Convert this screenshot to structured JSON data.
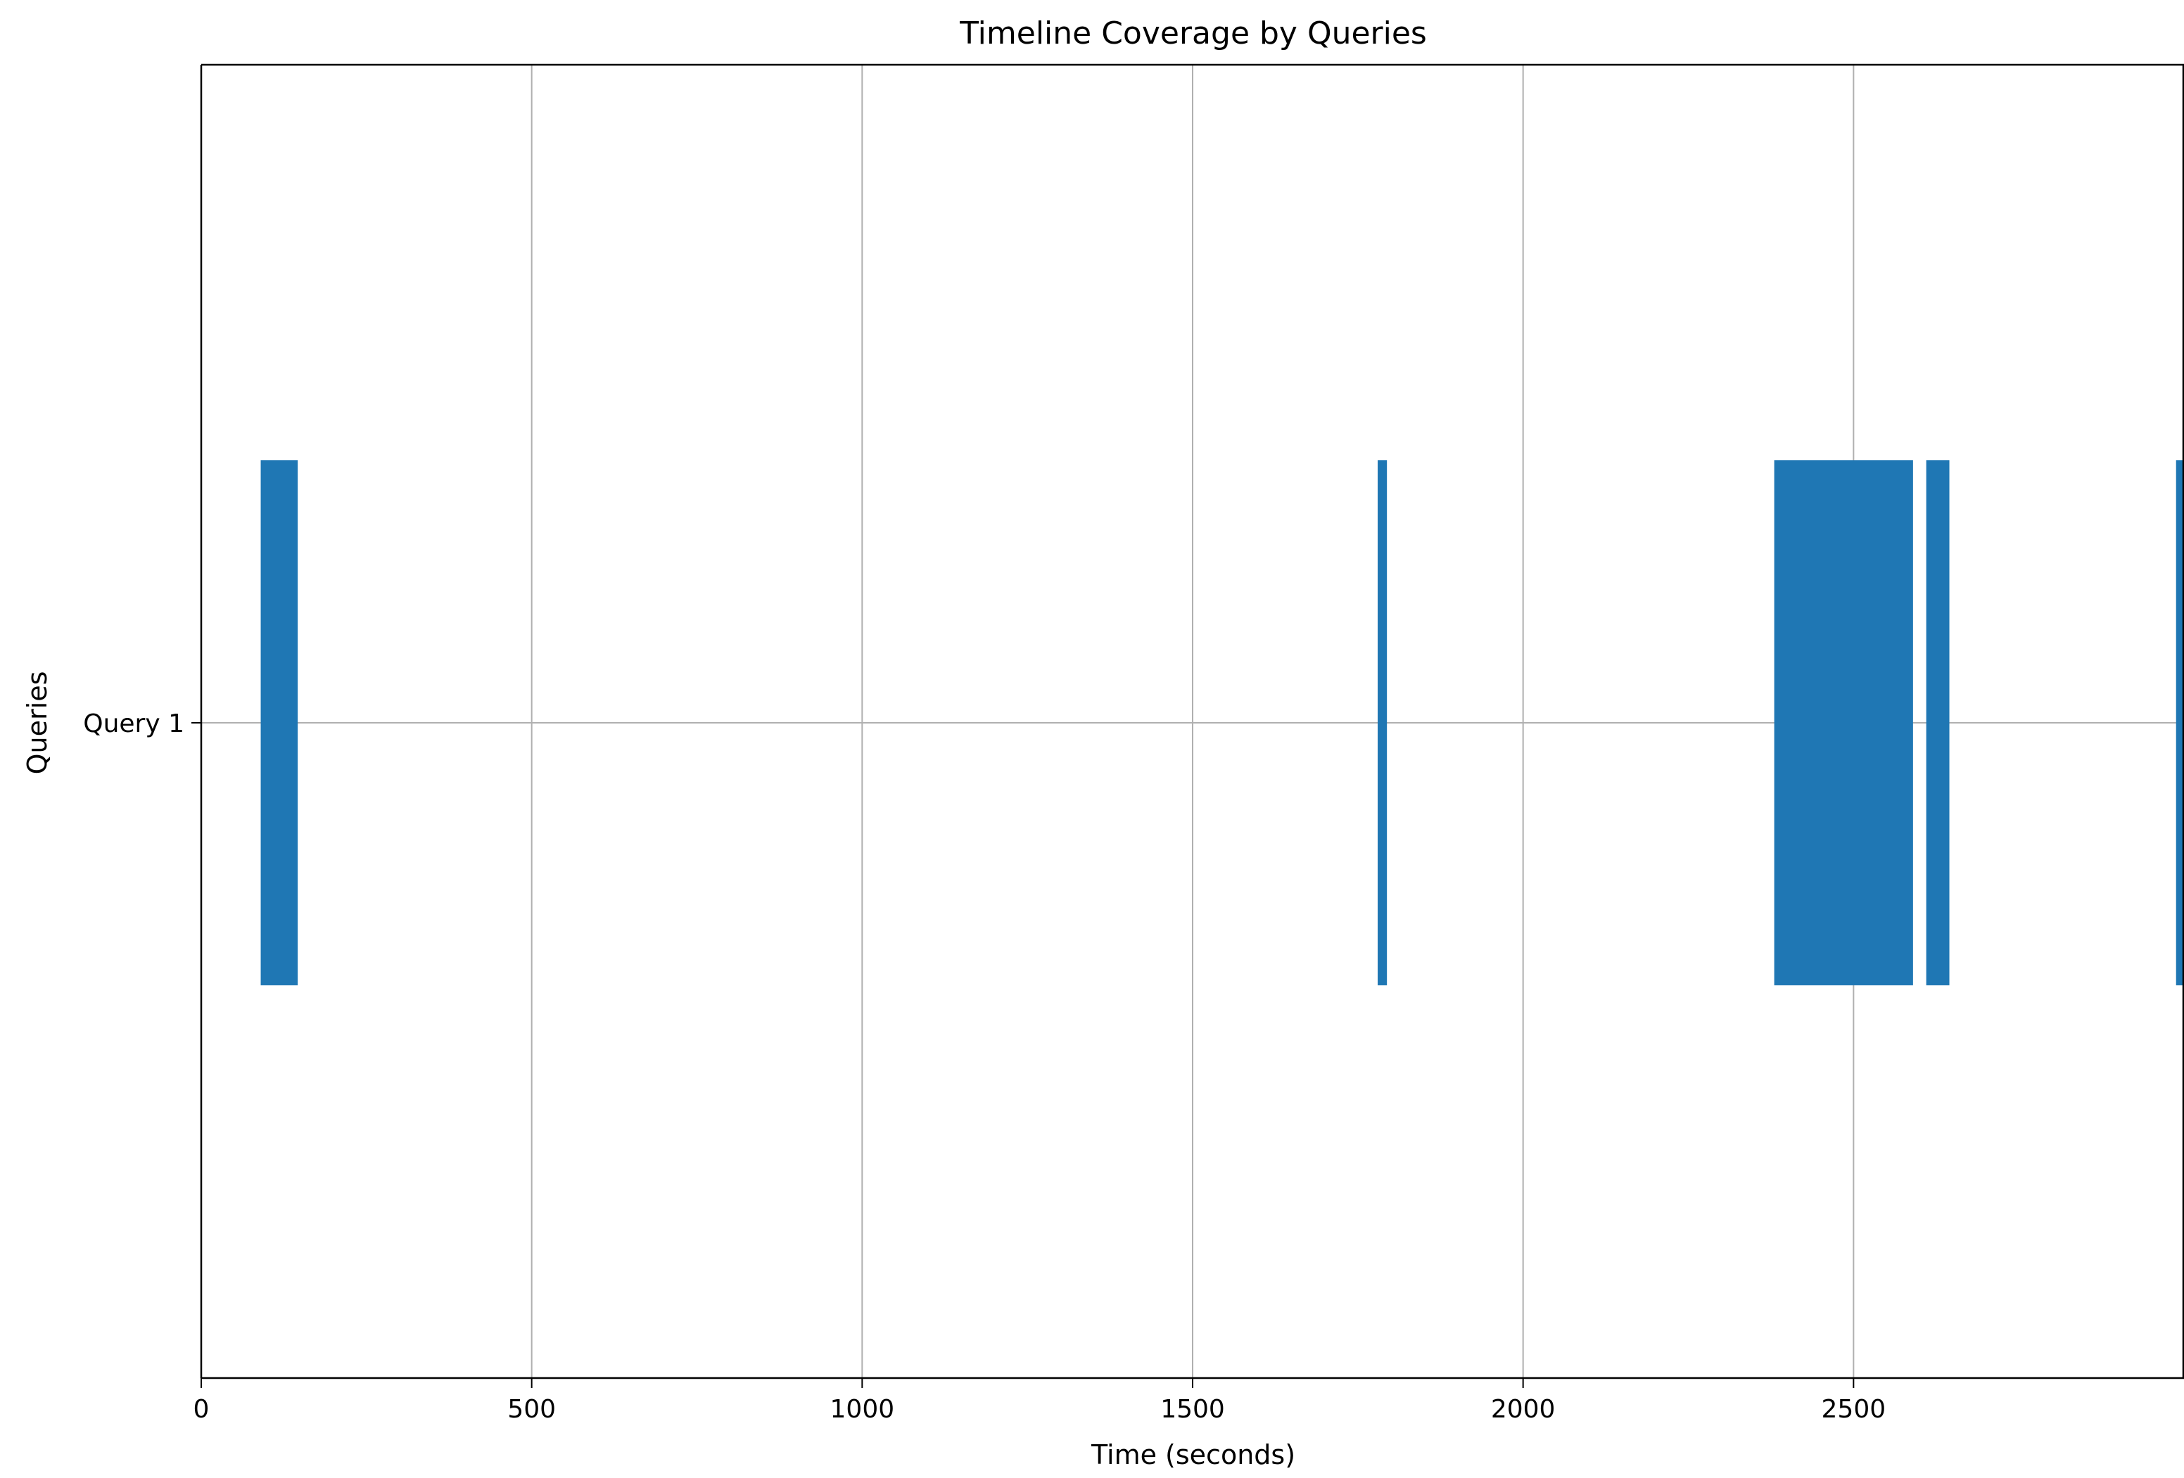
{
  "chart_data": {
    "type": "timeline",
    "title": "Timeline Coverage by Queries",
    "xlabel": "Time (seconds)",
    "ylabel": "Queries",
    "xlim": [
      0,
      3000
    ],
    "x_ticks": [
      0,
      500,
      1000,
      1500,
      2000,
      2500
    ],
    "x_tick_labels": [
      "0",
      "500",
      "1000",
      "1500",
      "2000",
      "2500"
    ],
    "y_categories": [
      "Query 1"
    ],
    "grid": true,
    "colors": {
      "bar": "#1f77b4",
      "grid": "#b0b0b0",
      "axis": "#000000"
    },
    "series": [
      {
        "category": "Query 1",
        "intervals": [
          {
            "start": 90,
            "end": 146
          },
          {
            "start": 1780,
            "end": 1794
          },
          {
            "start": 2380,
            "end": 2590
          },
          {
            "start": 2610,
            "end": 2645
          },
          {
            "start": 2988,
            "end": 3000
          }
        ]
      }
    ]
  }
}
